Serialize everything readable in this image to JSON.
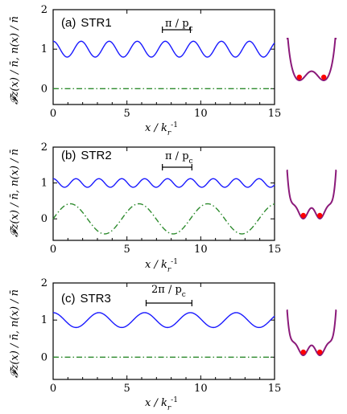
{
  "chart_data": [
    {
      "type": "line",
      "panel_label": "(a)",
      "name": "STR1",
      "xlabel": "x / k_r^-1",
      "ylabel": "𝓕z(x) / n̄,  n(x) / n̄",
      "xlim": [
        0,
        15
      ],
      "ylim": [
        -0.4,
        2.0
      ],
      "xticks": [
        0,
        5,
        10,
        15
      ],
      "yticks": [
        0,
        1,
        2
      ],
      "period_annotation": "π / pc",
      "period_range": [
        7.4,
        9.3
      ],
      "series": [
        {
          "name": "n(x)/n̄",
          "style": "solid",
          "color": "#1a1aff",
          "mean": 1.0,
          "amplitude": 0.2,
          "period": 1.9,
          "phase": 0.0
        },
        {
          "name": "Fz(x)/n̄",
          "style": "dash-dot",
          "color": "#2e8b2e",
          "mean": 0.0,
          "amplitude": 0.0,
          "period": 1.9,
          "phase": 0.0
        }
      ]
    },
    {
      "type": "line",
      "panel_label": "(b)",
      "name": "STR2",
      "xlabel": "x / k_r^-1",
      "ylabel": "𝓕z(x) / n̄,  n(x) / n̄",
      "xlim": [
        0,
        15
      ],
      "ylim": [
        -0.6,
        2.0
      ],
      "xticks": [
        0,
        5,
        10,
        15
      ],
      "yticks": [
        0,
        1,
        2
      ],
      "period_annotation": "π / pc",
      "period_range": [
        7.4,
        9.4
      ],
      "series": [
        {
          "name": "n(x)/n̄",
          "style": "solid",
          "color": "#1a1aff",
          "mean": 1.0,
          "amplitude": 0.12,
          "period": 1.55,
          "phase": 0.0
        },
        {
          "name": "Fz(x)/n̄",
          "style": "dash-dot",
          "color": "#2e8b2e",
          "mean": 0.0,
          "amplitude": 0.42,
          "period": 4.65,
          "phase": 0.25
        }
      ]
    },
    {
      "type": "line",
      "panel_label": "(c)",
      "name": "STR3",
      "xlabel": "x / k_r^-1",
      "ylabel": "𝓕z(x) / n̄,  n(x) / n̄",
      "xlim": [
        0,
        15
      ],
      "ylim": [
        -0.6,
        2.0
      ],
      "xticks": [
        0,
        5,
        10,
        15
      ],
      "yticks": [
        0,
        1,
        2
      ],
      "period_annotation": "2π / pc",
      "period_range": [
        6.3,
        9.4
      ],
      "series": [
        {
          "name": "n(x)/n̄",
          "style": "solid",
          "color": "#1a1aff",
          "mean": 1.0,
          "amplitude": 0.2,
          "period": 3.1,
          "phase": 0.0
        },
        {
          "name": "Fz(x)/n̄",
          "style": "dash-dot",
          "color": "#2e8b2e",
          "mean": 0.0,
          "amplitude": 0.0,
          "period": 3.1,
          "phase": 0.0
        }
      ]
    }
  ],
  "insets": [
    {
      "name": "double-well-potential",
      "wells": 2,
      "curve_color": "#8b1a7a",
      "dot_color": "#ff0000"
    },
    {
      "name": "triple-well-potential-b",
      "wells": 3,
      "curve_color": "#8b1a7a",
      "dot_color": "#ff0000"
    },
    {
      "name": "triple-well-potential-c",
      "wells": 3,
      "curve_color": "#8b1a7a",
      "dot_color": "#ff0000"
    }
  ],
  "text": {
    "panel_a": "(a)",
    "name_a": "STR1",
    "panel_b": "(b)",
    "name_b": "STR2",
    "panel_c": "(c)",
    "name_c": "STR3",
    "period_a": "π / p",
    "period_b": "π / p",
    "period_c": "2π / p",
    "period_sub": "c",
    "xlabel_main": "x / k",
    "xlabel_sub": "r",
    "xlabel_sup": "-1",
    "ylabel_a": "𝓕z(x) / n̄,  n(x) / n̄",
    "ylabel_b": "𝓕z(x) / n̄,  n(x) / n̄",
    "ylabel_c": "𝓕z(x) / n̄,  n(x) / n̄",
    "ticks_x": [
      "0",
      "5",
      "10",
      "15"
    ],
    "ticks_y": [
      "0",
      "1",
      "2"
    ]
  }
}
